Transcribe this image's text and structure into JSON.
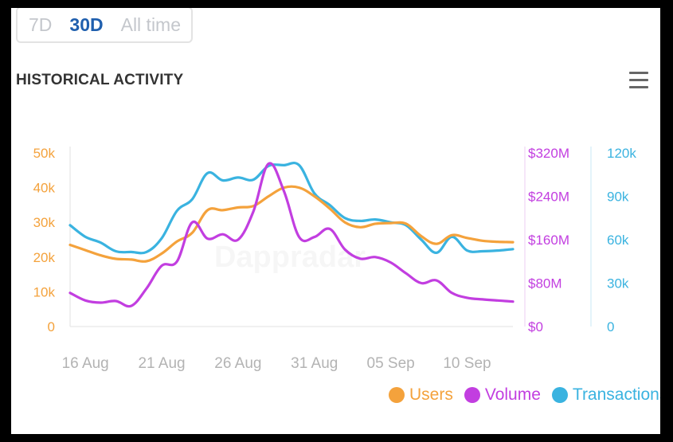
{
  "range_tabs": [
    {
      "label": "7D",
      "active": false
    },
    {
      "label": "30D",
      "active": true
    },
    {
      "label": "All time",
      "active": false
    }
  ],
  "title": "HISTORICAL ACTIVITY",
  "watermark": "Dappradar",
  "colors": {
    "users": "#f4a23c",
    "volume": "#c23ee0",
    "transactions": "#3ab3e0",
    "grid": "#e6e6e6",
    "tab_active": "#1f5fae"
  },
  "chart_data": {
    "type": "line",
    "x": [
      "15 Aug",
      "16 Aug",
      "17 Aug",
      "18 Aug",
      "19 Aug",
      "20 Aug",
      "21 Aug",
      "22 Aug",
      "23 Aug",
      "24 Aug",
      "25 Aug",
      "26 Aug",
      "27 Aug",
      "28 Aug",
      "29 Aug",
      "30 Aug",
      "31 Aug",
      "01 Sep",
      "02 Sep",
      "03 Sep",
      "04 Sep",
      "05 Sep",
      "06 Sep",
      "07 Sep",
      "08 Sep",
      "09 Sep",
      "10 Sep",
      "11 Sep",
      "12 Sep",
      "13 Sep"
    ],
    "x_tick_labels": [
      "16 Aug",
      "21 Aug",
      "26 Aug",
      "31 Aug",
      "05 Sep",
      "10 Sep"
    ],
    "axes": {
      "users": {
        "side": "left",
        "ticks": [
          "0",
          "10k",
          "20k",
          "30k",
          "40k",
          "50k"
        ],
        "range": [
          0,
          50000
        ]
      },
      "volume": {
        "side": "right",
        "ticks": [
          "$0",
          "$80M",
          "$160M",
          "$240M",
          "$320M"
        ],
        "range": [
          0,
          320000000
        ]
      },
      "transactions": {
        "side": "right",
        "ticks": [
          "0",
          "30k",
          "60k",
          "90k",
          "120k"
        ],
        "range": [
          0,
          120000
        ]
      }
    },
    "series": [
      {
        "name": "Users",
        "axis": "users",
        "values": [
          23500,
          22000,
          20500,
          19500,
          19300,
          18800,
          21000,
          24500,
          27000,
          33500,
          33500,
          34300,
          34700,
          37500,
          40000,
          40000,
          37500,
          34000,
          30000,
          28600,
          29600,
          29800,
          29600,
          26000,
          23800,
          26300,
          25500,
          24700,
          24400,
          24300
        ]
      },
      {
        "name": "Volume",
        "axis": "volume",
        "values": [
          62000000,
          48000000,
          44000000,
          47000000,
          38000000,
          70000000,
          112000000,
          120000000,
          192000000,
          162000000,
          170000000,
          160000000,
          212000000,
          300000000,
          250000000,
          165000000,
          165000000,
          180000000,
          142000000,
          125000000,
          128000000,
          118000000,
          98000000,
          80000000,
          85000000,
          62000000,
          53000000,
          50000000,
          48000000,
          46000000
        ]
      },
      {
        "name": "Transactions",
        "axis": "transactions",
        "values": [
          70000,
          62000,
          58000,
          52000,
          51500,
          51500,
          61000,
          80000,
          88000,
          106000,
          101000,
          103000,
          101500,
          111000,
          111500,
          111500,
          92000,
          84000,
          75000,
          73000,
          74000,
          72000,
          70000,
          60000,
          51000,
          62000,
          52500,
          52000,
          52500,
          53500
        ]
      }
    ],
    "legend": [
      "Users",
      "Volume",
      "Transactions"
    ],
    "legend_position": "bottom-right",
    "grid": false
  }
}
